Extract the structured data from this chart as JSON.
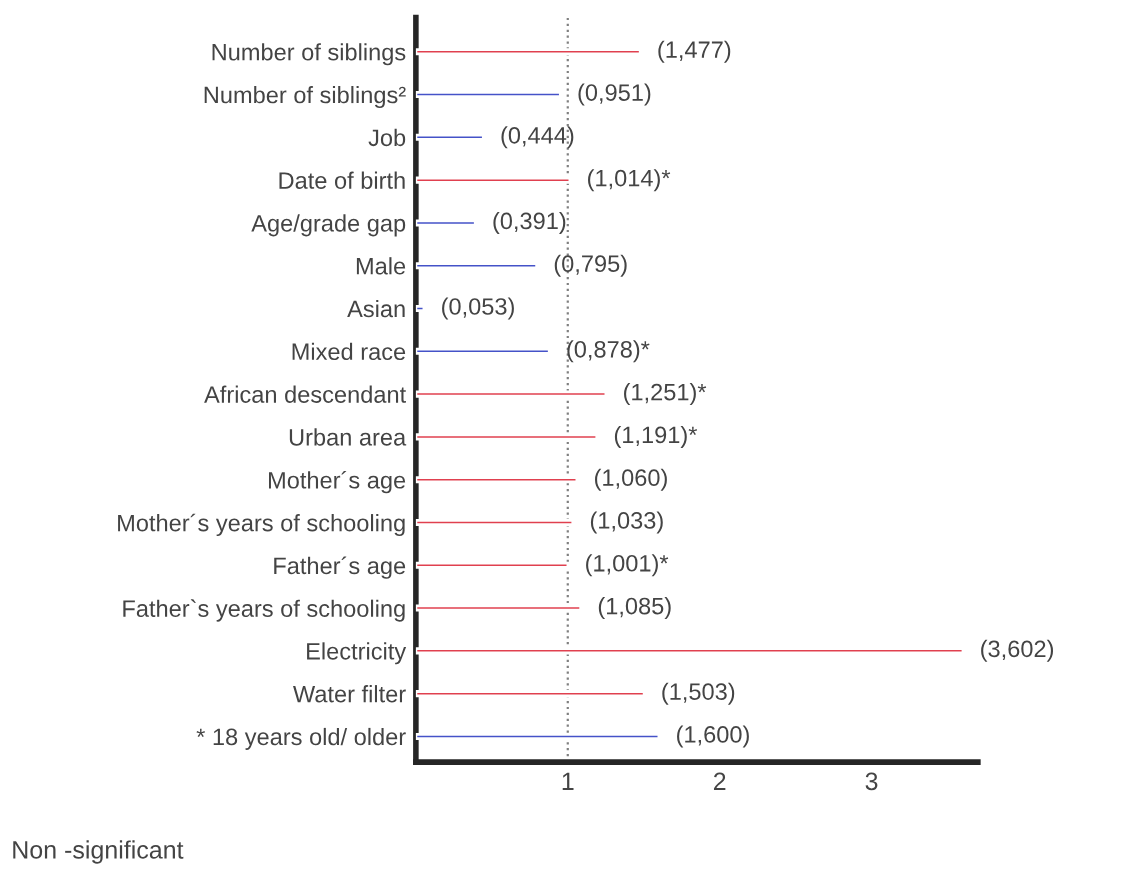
{
  "chart_data": {
    "type": "bar",
    "orientation": "horizontal",
    "categories": [
      "Number of siblings",
      "Number of siblings²",
      "Job",
      "Date of birth",
      "Age/grade gap",
      "Male",
      "Asian",
      "Mixed race",
      "African descendant",
      "Urban area",
      "Mother´s age",
      "Mother´s years of schooling",
      "Father´s age",
      "Father`s years of schooling",
      "Electricity",
      "Water filter",
      "* 18 years old/ older"
    ],
    "values": [
      1.477,
      0.951,
      0.444,
      1.014,
      0.391,
      0.795,
      0.053,
      0.878,
      1.251,
      1.191,
      1.06,
      1.033,
      1.001,
      1.085,
      3.602,
      1.503,
      1.6
    ],
    "value_labels": [
      "(1,477)",
      "(0,951)",
      "(0,444)",
      "(1,014)*",
      "(0,391)",
      "(0,795)",
      "(0,053)",
      "(0,878)*",
      "(1,251)*",
      "(1,191)*",
      "(1,060)",
      "(1,033)",
      "(1,001)*",
      "(1,085)",
      "(3,602)",
      "(1,503)",
      "(1,600)"
    ],
    "colors": [
      "#e0404f",
      "#4552c8",
      "#4552c8",
      "#e0404f",
      "#4552c8",
      "#4552c8",
      "#4552c8",
      "#4552c8",
      "#e0404f",
      "#e0404f",
      "#e0404f",
      "#e0404f",
      "#e0404f",
      "#e0404f",
      "#e0404f",
      "#e0404f",
      "#4552c8"
    ],
    "xlim": [
      0,
      3.7
    ],
    "xticks": [
      1,
      2,
      3
    ],
    "ref_lines": [
      {
        "axis": "x",
        "value": 1,
        "line_style": "dotted",
        "color": "#808080"
      }
    ],
    "annotations": [
      "Non -significant"
    ],
    "grid": false,
    "legend": false
  }
}
